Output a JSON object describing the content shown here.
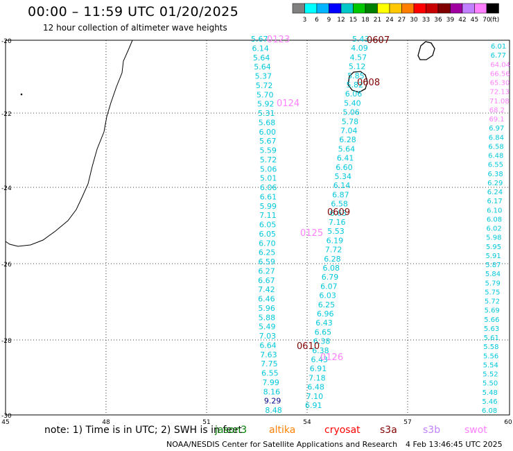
{
  "header": {
    "title": "00:00 – 11:59 UTC 01/20/2025",
    "subtitle": "12 hour collection of altimeter wave heights"
  },
  "colorbar": {
    "levels": [
      "3",
      "6",
      "9",
      "12",
      "15",
      "18",
      "21",
      "24",
      "27",
      "30",
      "33",
      "36",
      "39",
      "42",
      "45",
      "70"
    ],
    "unit": "(ft)",
    "colors": [
      "#808080",
      "#00ffff",
      "#00b4ff",
      "#0000ff",
      "#00c8c8",
      "#00c800",
      "#008000",
      "#ffff00",
      "#ffc800",
      "#ff8000",
      "#ff0000",
      "#c80000",
      "#800000",
      "#a000a0",
      "#c080ff",
      "#ff80ff",
      "#000000"
    ]
  },
  "axes": {
    "lat_labels": [
      "-20",
      "-22",
      "-24",
      "-26",
      "-28",
      "-30"
    ],
    "lon_labels": [
      "45",
      "48",
      "51",
      "54",
      "57",
      "60"
    ]
  },
  "passes": [
    {
      "id": "0123",
      "color": "#ff80ff"
    },
    {
      "id": "0124",
      "color": "#ff80ff"
    },
    {
      "id": "0125",
      "color": "#ff80ff"
    },
    {
      "id": "0126",
      "color": "#ff80ff"
    },
    {
      "id": "0607",
      "color": "#800000"
    },
    {
      "id": "0608",
      "color": "#800000"
    },
    {
      "id": "0609",
      "color": "#800000"
    },
    {
      "id": "0610",
      "color": "#800000"
    }
  ],
  "track_a": [
    "5.67",
    "6.14",
    "5.64",
    "5.64",
    "5.37",
    "5.72",
    "5.70",
    "5.92",
    "5.31",
    "5.68",
    "6.00",
    "5.67",
    "5.59",
    "5.72",
    "5.06",
    "5.01",
    "6.06",
    "6.61",
    "5.99",
    "7.11",
    "6.05",
    "6.05",
    "6.70",
    "6.25",
    "6.59",
    "6.27",
    "6.67",
    "7.42",
    "6.46",
    "5.96",
    "5.88",
    "5.49",
    "7.03",
    "6.64",
    "7.63",
    "7.75",
    "6.55",
    "7.99",
    "8.16",
    "9.29",
    "8.48"
  ],
  "track_b": [
    "5.43",
    "4.09",
    "4.57",
    "5.12",
    "5.85",
    "5.82",
    "6.06",
    "5.40",
    "5.06",
    "5.78",
    "7.04",
    "6.28",
    "5.64",
    "6.41",
    "6.60",
    "5.34",
    "6.14",
    "6.87",
    "6.58",
    "6.63",
    "7.16",
    "5.53",
    "6.19",
    "7.72",
    "6.28",
    "6.08",
    "6.79",
    "6.07",
    "6.03",
    "6.25",
    "6.96",
    "6.43",
    "6.65",
    "6.38",
    "6.38",
    "6.43",
    "6.91",
    "7.18",
    "6.48",
    "7.10",
    "6.91"
  ],
  "track_c": [
    "6.01",
    "6.77",
    "64.04",
    "66.56",
    "65.30",
    "72.13",
    "71.08",
    "68.2",
    "69.1",
    "6.97",
    "6.84",
    "6.58",
    "6.48",
    "6.55",
    "6.38",
    "6.29",
    "6.24",
    "6.17",
    "6.10",
    "6.08",
    "6.02",
    "5.98",
    "5.95",
    "5.91",
    "5.87",
    "5.84",
    "5.79",
    "5.75",
    "5.72",
    "5.69",
    "5.66",
    "5.63",
    "5.61",
    "5.58",
    "5.56",
    "5.54",
    "5.52",
    "5.50",
    "5.48",
    "5.46",
    "6.08"
  ],
  "footer": {
    "note": "note:  1) Time is in UTC; 2) SWH is in feet",
    "satellites": [
      {
        "name": "jason3",
        "color": "#008000"
      },
      {
        "name": "altika",
        "color": "#ff8000"
      },
      {
        "name": "cryosat",
        "color": "#ff0000"
      },
      {
        "name": "s3a",
        "color": "#800000"
      },
      {
        "name": "s3b",
        "color": "#c080ff"
      },
      {
        "name": "swot",
        "color": "#ff80ff"
      }
    ],
    "credit": "NOAA/NESDIS Center for Satellite Applications and Research",
    "timestamp": "4 Feb 13:46:45 UTC 2025"
  }
}
